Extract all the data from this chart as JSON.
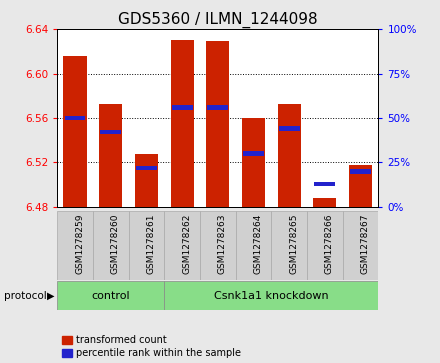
{
  "title": "GDS5360 / ILMN_1244098",
  "samples": [
    "GSM1278259",
    "GSM1278260",
    "GSM1278261",
    "GSM1278262",
    "GSM1278263",
    "GSM1278264",
    "GSM1278265",
    "GSM1278266",
    "GSM1278267"
  ],
  "red_values": [
    6.616,
    6.573,
    6.528,
    6.63,
    6.629,
    6.56,
    6.573,
    6.488,
    6.518
  ],
  "blue_values_pct": [
    50,
    42,
    22,
    56,
    56,
    30,
    44,
    13,
    20
  ],
  "ylim": [
    6.48,
    6.64
  ],
  "y2lim": [
    0,
    100
  ],
  "y_ticks": [
    6.48,
    6.52,
    6.56,
    6.6,
    6.64
  ],
  "y2_ticks": [
    0,
    25,
    50,
    75,
    100
  ],
  "bar_base": 6.48,
  "bar_width": 0.65,
  "red_color": "#cc2200",
  "blue_color": "#2222cc",
  "bg_color": "#e8e8e8",
  "plot_bg": "#ffffff",
  "control_label": "control",
  "knockdown_label": "Csnk1a1 knockdown",
  "control_count": 3,
  "knockdown_count": 6,
  "protocol_label": "protocol",
  "legend_red": "transformed count",
  "legend_blue": "percentile rank within the sample",
  "title_fontsize": 11,
  "tick_fontsize": 7.5,
  "sample_fontsize": 6.5,
  "group_fontsize": 8,
  "legend_fontsize": 7,
  "green_color": "#88dd88",
  "grey_box_color": "#d0d0d0"
}
